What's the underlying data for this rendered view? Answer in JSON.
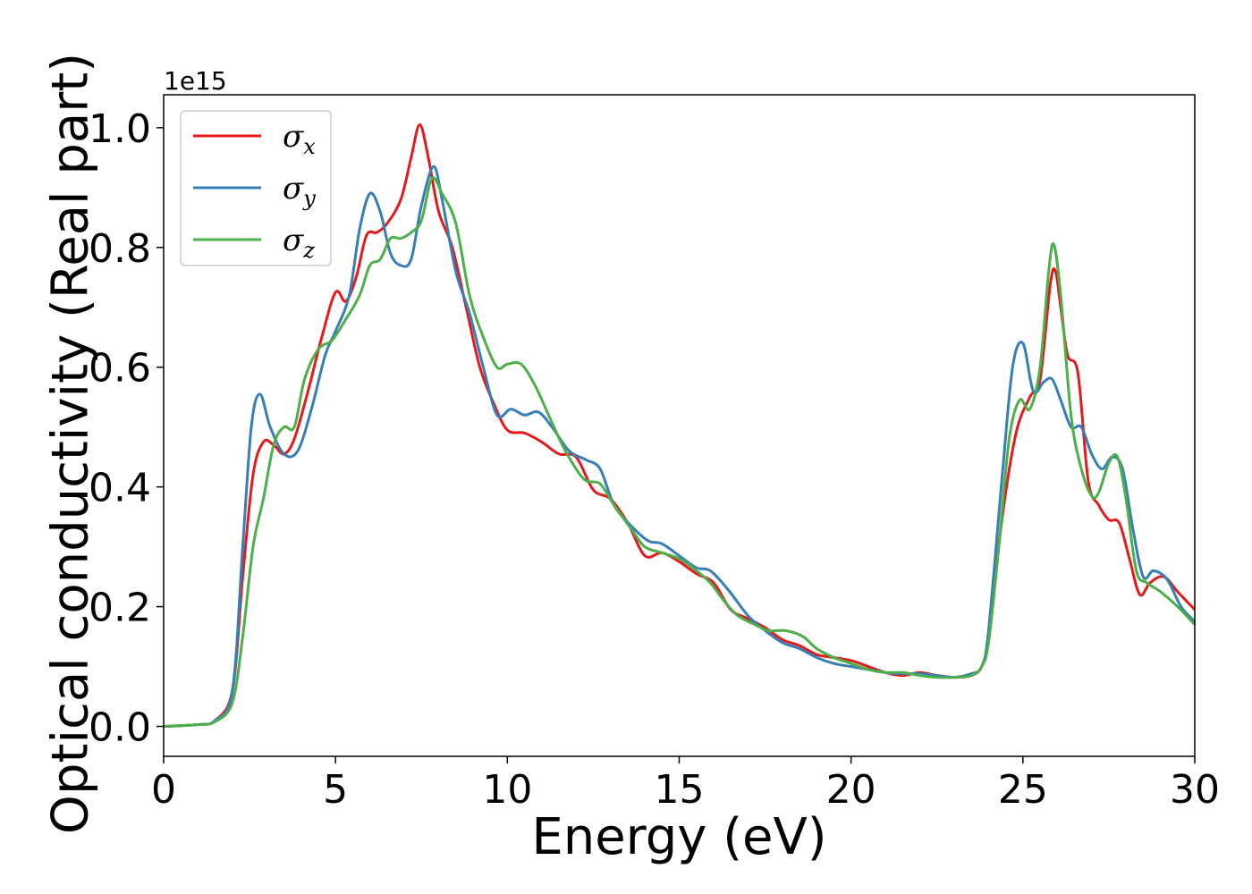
{
  "chart_data": {
    "type": "line",
    "title": "",
    "xlabel": "Energy (eV)",
    "ylabel": "Optical conductivity (Real part)",
    "y_offset_label": "1e15",
    "xlim": [
      0,
      30
    ],
    "ylim": [
      -0.05,
      1.055
    ],
    "x_ticks": [
      0,
      5,
      10,
      15,
      20,
      25,
      30
    ],
    "x_tick_labels": [
      "0",
      "5",
      "10",
      "15",
      "20",
      "25",
      "30"
    ],
    "y_ticks": [
      0.0,
      0.2,
      0.4,
      0.6,
      0.8,
      1.0
    ],
    "y_tick_labels": [
      "0.0",
      "0.2",
      "0.4",
      "0.6",
      "0.8",
      "1.0"
    ],
    "grid": false,
    "legend_position": "top-left",
    "series": [
      {
        "name": "σx",
        "symbol": "σ",
        "subscript": "x",
        "color": "#e41a1c",
        "points": [
          [
            0,
            0
          ],
          [
            1,
            0.003
          ],
          [
            1.5,
            0.01
          ],
          [
            2,
            0.06
          ],
          [
            2.3,
            0.25
          ],
          [
            2.6,
            0.42
          ],
          [
            2.9,
            0.475
          ],
          [
            3.2,
            0.47
          ],
          [
            3.5,
            0.455
          ],
          [
            3.8,
            0.48
          ],
          [
            4.2,
            0.56
          ],
          [
            4.6,
            0.65
          ],
          [
            5,
            0.725
          ],
          [
            5.3,
            0.71
          ],
          [
            5.6,
            0.75
          ],
          [
            5.9,
            0.82
          ],
          [
            6.2,
            0.825
          ],
          [
            6.5,
            0.84
          ],
          [
            6.9,
            0.88
          ],
          [
            7.2,
            0.95
          ],
          [
            7.45,
            1.005
          ],
          [
            7.7,
            0.95
          ],
          [
            8,
            0.86
          ],
          [
            8.4,
            0.8
          ],
          [
            8.8,
            0.7
          ],
          [
            9.2,
            0.6
          ],
          [
            9.6,
            0.54
          ],
          [
            10,
            0.495
          ],
          [
            10.5,
            0.49
          ],
          [
            11,
            0.475
          ],
          [
            11.5,
            0.455
          ],
          [
            12,
            0.45
          ],
          [
            12.5,
            0.395
          ],
          [
            13,
            0.38
          ],
          [
            13.5,
            0.34
          ],
          [
            14,
            0.285
          ],
          [
            14.5,
            0.29
          ],
          [
            15,
            0.275
          ],
          [
            15.5,
            0.255
          ],
          [
            16,
            0.24
          ],
          [
            16.5,
            0.195
          ],
          [
            17,
            0.18
          ],
          [
            17.5,
            0.165
          ],
          [
            18,
            0.145
          ],
          [
            18.5,
            0.135
          ],
          [
            19,
            0.12
          ],
          [
            19.5,
            0.115
          ],
          [
            20,
            0.11
          ],
          [
            20.5,
            0.1
          ],
          [
            21,
            0.09
          ],
          [
            21.5,
            0.085
          ],
          [
            22,
            0.09
          ],
          [
            22.5,
            0.085
          ],
          [
            23,
            0.082
          ],
          [
            23.5,
            0.085
          ],
          [
            23.8,
            0.1
          ],
          [
            24,
            0.15
          ],
          [
            24.4,
            0.35
          ],
          [
            24.8,
            0.49
          ],
          [
            25.2,
            0.55
          ],
          [
            25.5,
            0.58
          ],
          [
            25.8,
            0.74
          ],
          [
            25.95,
            0.76
          ],
          [
            26.1,
            0.7
          ],
          [
            26.3,
            0.62
          ],
          [
            26.6,
            0.59
          ],
          [
            26.9,
            0.41
          ],
          [
            27.2,
            0.37
          ],
          [
            27.5,
            0.345
          ],
          [
            27.8,
            0.34
          ],
          [
            28.1,
            0.28
          ],
          [
            28.4,
            0.22
          ],
          [
            28.7,
            0.24
          ],
          [
            29.1,
            0.25
          ],
          [
            29.5,
            0.225
          ],
          [
            30,
            0.195
          ]
        ]
      },
      {
        "name": "σy",
        "symbol": "σ",
        "subscript": "y",
        "color": "#377eb8",
        "points": [
          [
            0,
            0
          ],
          [
            1,
            0.003
          ],
          [
            1.5,
            0.01
          ],
          [
            2,
            0.06
          ],
          [
            2.3,
            0.3
          ],
          [
            2.55,
            0.5
          ],
          [
            2.8,
            0.555
          ],
          [
            3.1,
            0.5
          ],
          [
            3.5,
            0.455
          ],
          [
            3.9,
            0.46
          ],
          [
            4.3,
            0.53
          ],
          [
            4.7,
            0.62
          ],
          [
            5,
            0.66
          ],
          [
            5.4,
            0.72
          ],
          [
            5.7,
            0.83
          ],
          [
            6,
            0.89
          ],
          [
            6.3,
            0.86
          ],
          [
            6.6,
            0.79
          ],
          [
            6.9,
            0.77
          ],
          [
            7.2,
            0.78
          ],
          [
            7.5,
            0.87
          ],
          [
            7.85,
            0.935
          ],
          [
            8.1,
            0.88
          ],
          [
            8.5,
            0.76
          ],
          [
            8.9,
            0.69
          ],
          [
            9.3,
            0.6
          ],
          [
            9.7,
            0.52
          ],
          [
            10.1,
            0.53
          ],
          [
            10.5,
            0.52
          ],
          [
            10.9,
            0.525
          ],
          [
            11.3,
            0.5
          ],
          [
            11.8,
            0.46
          ],
          [
            12.3,
            0.445
          ],
          [
            12.7,
            0.43
          ],
          [
            13.1,
            0.37
          ],
          [
            13.6,
            0.335
          ],
          [
            14.1,
            0.31
          ],
          [
            14.5,
            0.305
          ],
          [
            15,
            0.285
          ],
          [
            15.5,
            0.265
          ],
          [
            15.9,
            0.26
          ],
          [
            16.4,
            0.23
          ],
          [
            17,
            0.185
          ],
          [
            17.5,
            0.16
          ],
          [
            18,
            0.14
          ],
          [
            18.5,
            0.13
          ],
          [
            19,
            0.115
          ],
          [
            19.5,
            0.105
          ],
          [
            20,
            0.1
          ],
          [
            20.5,
            0.095
          ],
          [
            21,
            0.09
          ],
          [
            21.5,
            0.088
          ],
          [
            22,
            0.088
          ],
          [
            22.5,
            0.085
          ],
          [
            23,
            0.082
          ],
          [
            23.5,
            0.088
          ],
          [
            23.8,
            0.1
          ],
          [
            24,
            0.16
          ],
          [
            24.4,
            0.42
          ],
          [
            24.7,
            0.6
          ],
          [
            25,
            0.64
          ],
          [
            25.3,
            0.56
          ],
          [
            25.6,
            0.575
          ],
          [
            25.85,
            0.58
          ],
          [
            26.1,
            0.545
          ],
          [
            26.4,
            0.5
          ],
          [
            26.7,
            0.5
          ],
          [
            27,
            0.455
          ],
          [
            27.3,
            0.43
          ],
          [
            27.6,
            0.45
          ],
          [
            27.9,
            0.43
          ],
          [
            28.2,
            0.33
          ],
          [
            28.5,
            0.25
          ],
          [
            28.8,
            0.26
          ],
          [
            29.2,
            0.245
          ],
          [
            29.6,
            0.2
          ],
          [
            30,
            0.175
          ]
        ]
      },
      {
        "name": "σz",
        "symbol": "σ",
        "subscript": "z",
        "color": "#4daf4a",
        "points": [
          [
            0,
            0
          ],
          [
            1,
            0.003
          ],
          [
            1.5,
            0.008
          ],
          [
            2,
            0.04
          ],
          [
            2.3,
            0.15
          ],
          [
            2.6,
            0.3
          ],
          [
            2.9,
            0.38
          ],
          [
            3.2,
            0.47
          ],
          [
            3.5,
            0.5
          ],
          [
            3.8,
            0.5
          ],
          [
            4.1,
            0.58
          ],
          [
            4.5,
            0.63
          ],
          [
            4.9,
            0.645
          ],
          [
            5.3,
            0.68
          ],
          [
            5.7,
            0.72
          ],
          [
            6,
            0.77
          ],
          [
            6.3,
            0.78
          ],
          [
            6.6,
            0.815
          ],
          [
            6.9,
            0.815
          ],
          [
            7.2,
            0.825
          ],
          [
            7.5,
            0.845
          ],
          [
            7.8,
            0.915
          ],
          [
            8.1,
            0.89
          ],
          [
            8.5,
            0.84
          ],
          [
            8.9,
            0.72
          ],
          [
            9.3,
            0.65
          ],
          [
            9.7,
            0.6
          ],
          [
            10,
            0.605
          ],
          [
            10.4,
            0.605
          ],
          [
            10.8,
            0.57
          ],
          [
            11.2,
            0.52
          ],
          [
            11.6,
            0.47
          ],
          [
            12,
            0.43
          ],
          [
            12.3,
            0.41
          ],
          [
            12.7,
            0.405
          ],
          [
            13.1,
            0.37
          ],
          [
            13.6,
            0.33
          ],
          [
            14,
            0.3
          ],
          [
            14.5,
            0.29
          ],
          [
            15,
            0.28
          ],
          [
            15.5,
            0.26
          ],
          [
            15.9,
            0.24
          ],
          [
            16.3,
            0.21
          ],
          [
            16.7,
            0.185
          ],
          [
            17.2,
            0.17
          ],
          [
            17.6,
            0.16
          ],
          [
            18.1,
            0.16
          ],
          [
            18.6,
            0.15
          ],
          [
            19,
            0.13
          ],
          [
            19.5,
            0.115
          ],
          [
            20,
            0.105
          ],
          [
            20.5,
            0.095
          ],
          [
            21,
            0.09
          ],
          [
            21.5,
            0.09
          ],
          [
            22,
            0.085
          ],
          [
            22.5,
            0.082
          ],
          [
            23,
            0.082
          ],
          [
            23.5,
            0.085
          ],
          [
            23.8,
            0.1
          ],
          [
            24,
            0.14
          ],
          [
            24.3,
            0.3
          ],
          [
            24.6,
            0.48
          ],
          [
            24.9,
            0.545
          ],
          [
            25.2,
            0.53
          ],
          [
            25.5,
            0.6
          ],
          [
            25.75,
            0.76
          ],
          [
            25.9,
            0.805
          ],
          [
            26.1,
            0.72
          ],
          [
            26.4,
            0.52
          ],
          [
            26.7,
            0.43
          ],
          [
            27,
            0.385
          ],
          [
            27.2,
            0.39
          ],
          [
            27.5,
            0.44
          ],
          [
            27.75,
            0.45
          ],
          [
            28,
            0.38
          ],
          [
            28.3,
            0.26
          ],
          [
            28.6,
            0.24
          ],
          [
            29,
            0.225
          ],
          [
            29.5,
            0.2
          ],
          [
            30,
            0.17
          ]
        ]
      }
    ]
  }
}
